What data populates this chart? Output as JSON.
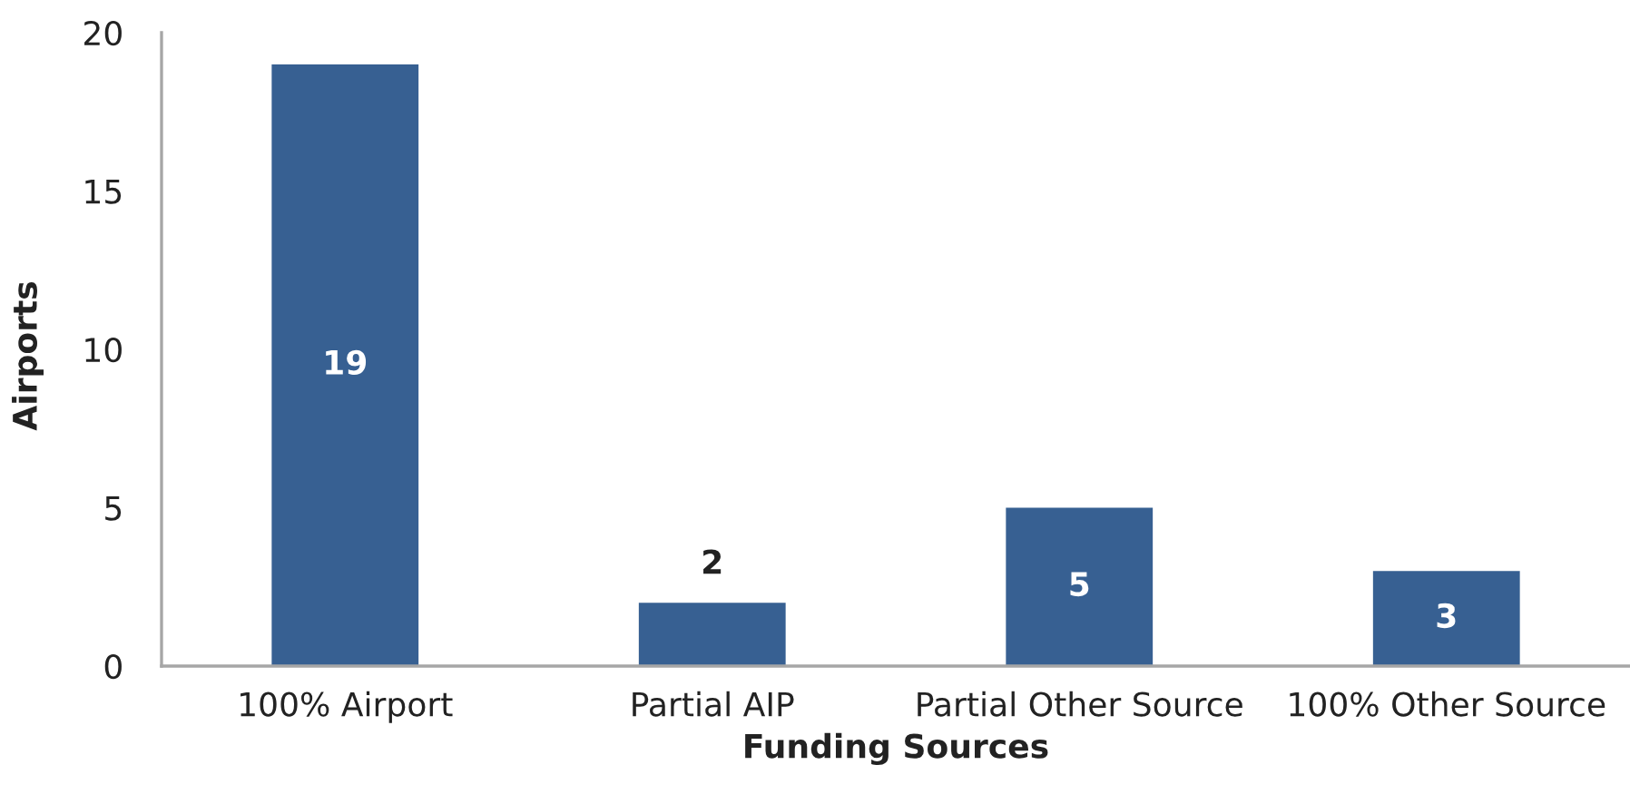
{
  "chart_data": {
    "type": "bar",
    "xlabel": "Funding Sources",
    "ylabel": "Airports",
    "categories": [
      "100% Airport",
      "Partial AIP",
      "Partial Other Source",
      "100% Other Source"
    ],
    "values": [
      19,
      2,
      5,
      3
    ],
    "color": "#376092",
    "ylim": [
      0,
      20
    ],
    "yticks": [
      0,
      5,
      10,
      15,
      20
    ],
    "data_labels": true
  }
}
